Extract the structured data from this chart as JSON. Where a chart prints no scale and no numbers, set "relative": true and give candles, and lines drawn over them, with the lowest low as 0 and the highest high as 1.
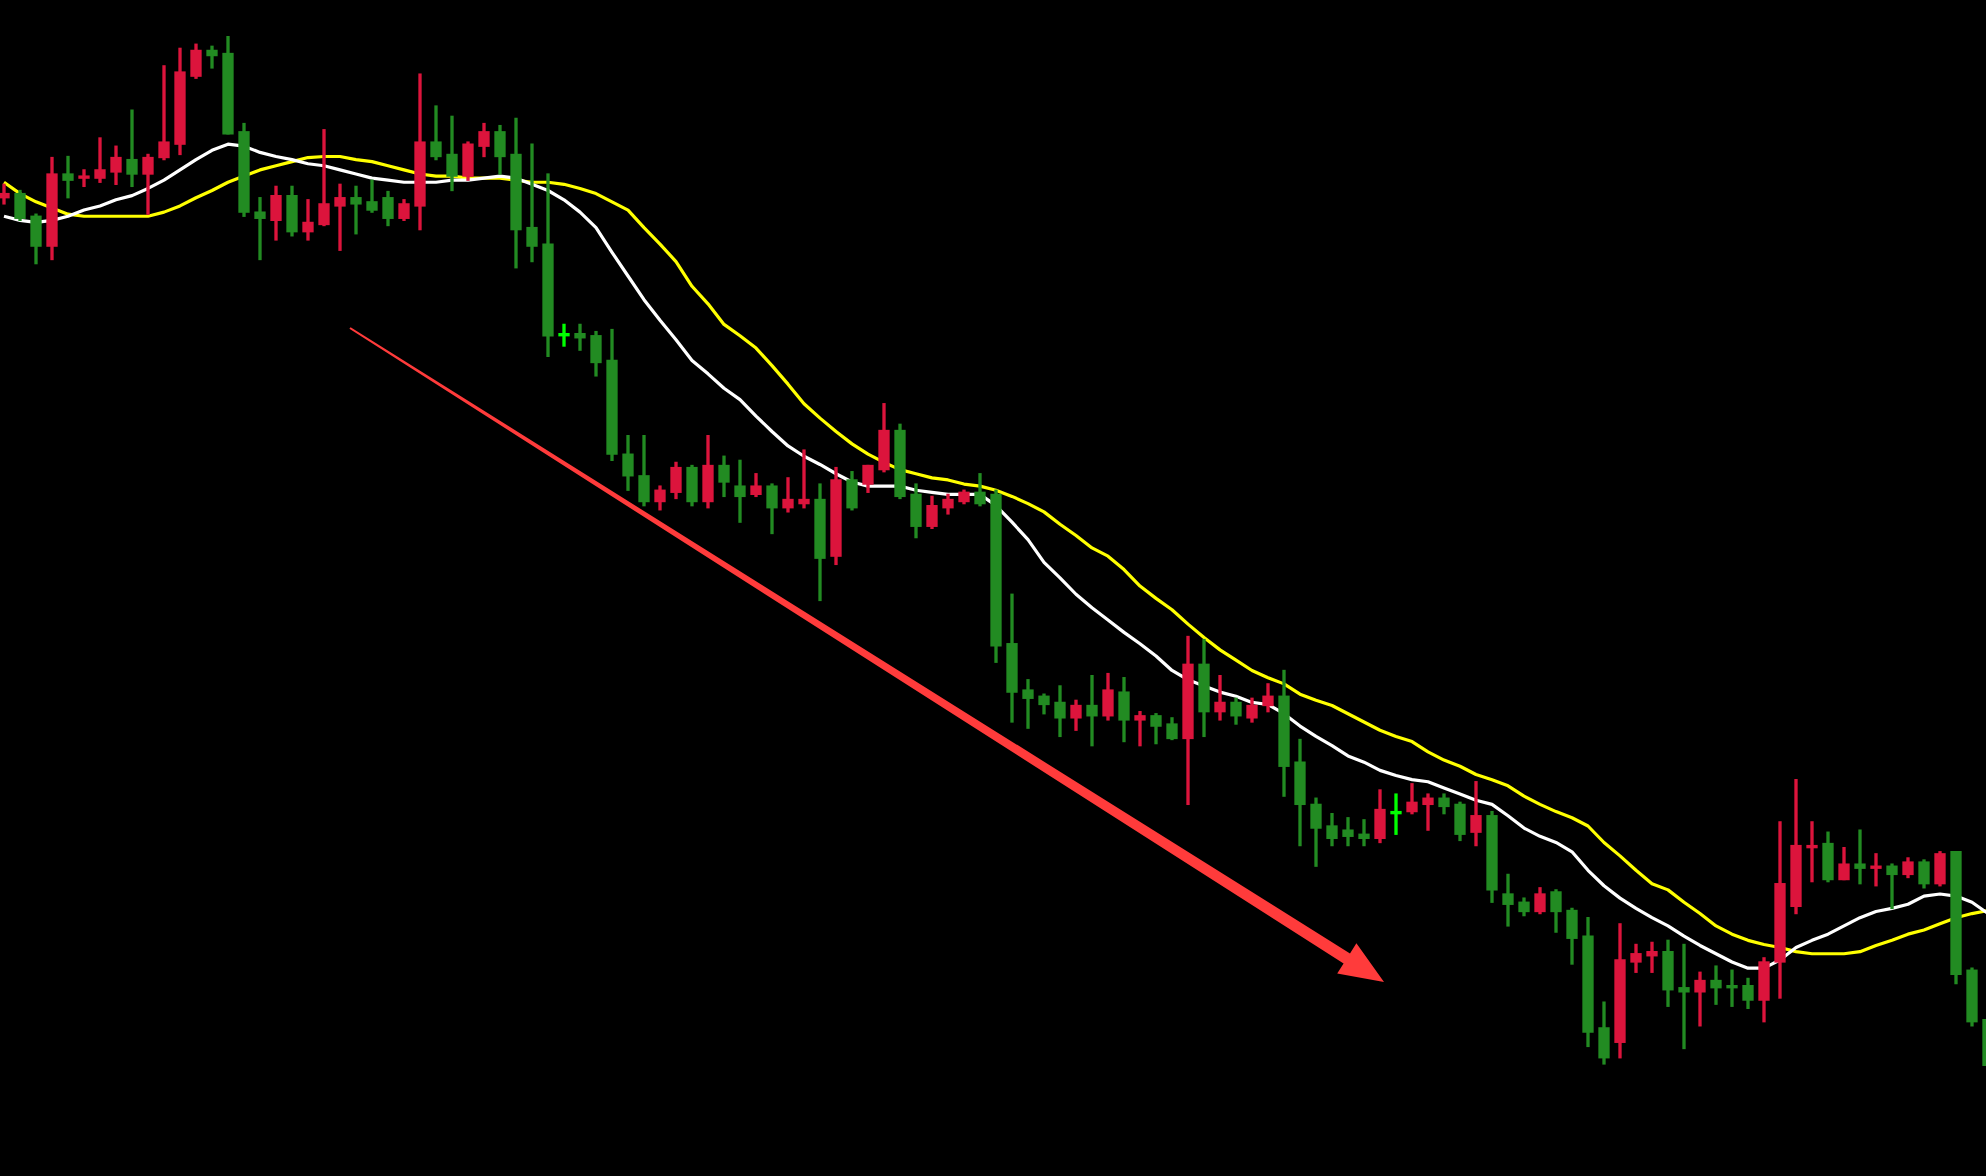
{
  "chart_data": {
    "type": "candlestick",
    "relative": true,
    "categories": [
      null,
      null,
      null,
      null,
      null,
      null,
      null,
      null,
      null,
      null,
      null,
      null,
      null,
      null,
      null,
      null,
      null,
      null,
      null,
      null,
      null,
      null,
      null,
      null,
      null,
      null,
      null,
      null,
      null,
      null,
      null,
      null,
      null,
      null,
      null,
      null,
      null,
      null,
      null,
      null,
      null,
      null,
      null,
      null,
      null,
      null,
      null,
      null,
      null,
      null,
      null,
      null,
      null,
      null,
      null,
      null,
      null,
      null,
      null,
      null,
      null,
      null,
      null,
      null,
      null,
      null,
      null,
      null,
      null,
      null,
      null,
      null,
      null,
      null,
      null,
      null,
      null,
      null,
      null,
      null,
      null,
      null,
      null,
      null,
      null,
      null,
      null,
      null,
      null,
      null,
      null,
      null,
      null,
      null,
      null,
      null,
      null,
      null,
      null,
      null,
      null,
      null,
      null,
      null,
      null,
      null,
      null,
      null,
      null,
      null,
      null,
      null,
      null,
      null,
      null,
      null,
      null,
      null,
      null,
      null,
      null,
      null,
      null,
      null,
      null
    ],
    "ohlc": [
      [
        0.843,
        0.856,
        0.837,
        0.847
      ],
      [
        0.847,
        0.85,
        0.821,
        0.823
      ],
      [
        0.825,
        0.827,
        0.779,
        0.796
      ],
      [
        0.796,
        0.882,
        0.783,
        0.866
      ],
      [
        0.866,
        0.883,
        0.843,
        0.86
      ],
      [
        0.862,
        0.87,
        0.854,
        0.864
      ],
      [
        0.862,
        0.901,
        0.858,
        0.87
      ],
      [
        0.868,
        0.893,
        0.856,
        0.882
      ],
      [
        0.88,
        0.928,
        0.854,
        0.866
      ],
      [
        0.866,
        0.885,
        0.827,
        0.882
      ],
      [
        0.882,
        0.971,
        0.88,
        0.897
      ],
      [
        0.895,
        0.988,
        0.885,
        0.965
      ],
      [
        0.961,
        0.992,
        0.959,
        0.986
      ],
      [
        0.986,
        0.99,
        0.969,
        0.981
      ],
      [
        0.983,
        1,
        0.905,
        0.905
      ],
      [
        0.907,
        0.915,
        0.825,
        0.829
      ],
      [
        0.829,
        0.843,
        0.783,
        0.823
      ],
      [
        0.821,
        0.854,
        0.802,
        0.845
      ],
      [
        0.845,
        0.854,
        0.806,
        0.81
      ],
      [
        0.81,
        0.841,
        0.802,
        0.819
      ],
      [
        0.817,
        0.909,
        0.816,
        0.837
      ],
      [
        0.835,
        0.856,
        0.792,
        0.843
      ],
      [
        0.843,
        0.854,
        0.808,
        0.837
      ],
      [
        0.839,
        0.86,
        0.829,
        0.831
      ],
      [
        0.843,
        0.849,
        0.816,
        0.823
      ],
      [
        0.823,
        0.841,
        0.821,
        0.837
      ],
      [
        0.835,
        0.963,
        0.812,
        0.897
      ],
      [
        0.897,
        0.932,
        0.88,
        0.883
      ],
      [
        0.885,
        0.922,
        0.85,
        0.864
      ],
      [
        0.864,
        0.897,
        0.86,
        0.895
      ],
      [
        0.893,
        0.915,
        0.883,
        0.907
      ],
      [
        0.907,
        0.913,
        0.866,
        0.883
      ],
      [
        0.885,
        0.92,
        0.775,
        0.812
      ],
      [
        0.814,
        0.895,
        0.781,
        0.796
      ],
      [
        0.798,
        0.866,
        0.689,
        0.709
      ],
      [
        0.711,
        0.72,
        0.699,
        0.709
      ],
      [
        0.711,
        0.72,
        0.695,
        0.707
      ],
      [
        0.709,
        0.713,
        0.67,
        0.683
      ],
      [
        0.685,
        0.715,
        0.588,
        0.594
      ],
      [
        0.594,
        0.612,
        0.559,
        0.573
      ],
      [
        0.573,
        0.612,
        0.544,
        0.548
      ],
      [
        0.548,
        0.563,
        0.54,
        0.559
      ],
      [
        0.557,
        0.586,
        0.551,
        0.581
      ],
      [
        0.581,
        0.583,
        0.544,
        0.548
      ],
      [
        0.548,
        0.612,
        0.542,
        0.583
      ],
      [
        0.583,
        0.592,
        0.553,
        0.567
      ],
      [
        0.563,
        0.588,
        0.528,
        0.553
      ],
      [
        0.555,
        0.575,
        0.553,
        0.563
      ],
      [
        0.563,
        0.565,
        0.517,
        0.542
      ],
      [
        0.542,
        0.571,
        0.538,
        0.55
      ],
      [
        0.546,
        0.598,
        0.542,
        0.55
      ],
      [
        0.55,
        0.565,
        0.452,
        0.493
      ],
      [
        0.495,
        0.581,
        0.487,
        0.569
      ],
      [
        0.569,
        0.577,
        0.54,
        0.542
      ],
      [
        0.565,
        0.583,
        0.557,
        0.583
      ],
      [
        0.579,
        0.643,
        0.577,
        0.617
      ],
      [
        0.617,
        0.623,
        0.551,
        0.553
      ],
      [
        0.555,
        0.565,
        0.513,
        0.524
      ],
      [
        0.524,
        0.553,
        0.522,
        0.544
      ],
      [
        0.542,
        0.555,
        0.536,
        0.55
      ],
      [
        0.548,
        0.559,
        0.546,
        0.557
      ],
      [
        0.557,
        0.575,
        0.544,
        0.546
      ],
      [
        0.555,
        0.559,
        0.392,
        0.408
      ],
      [
        0.41,
        0.458,
        0.334,
        0.363
      ],
      [
        0.365,
        0.375,
        0.328,
        0.357
      ],
      [
        0.359,
        0.361,
        0.342,
        0.351
      ],
      [
        0.353,
        0.369,
        0.32,
        0.338
      ],
      [
        0.338,
        0.355,
        0.326,
        0.35
      ],
      [
        0.35,
        0.379,
        0.311,
        0.34
      ],
      [
        0.34,
        0.381,
        0.336,
        0.365
      ],
      [
        0.363,
        0.377,
        0.315,
        0.336
      ],
      [
        0.336,
        0.344,
        0.311,
        0.34
      ],
      [
        0.34,
        0.342,
        0.313,
        0.33
      ],
      [
        0.332,
        0.338,
        0.317,
        0.318
      ],
      [
        0.318,
        0.417,
        0.254,
        0.39
      ],
      [
        0.39,
        0.414,
        0.32,
        0.344
      ],
      [
        0.344,
        0.379,
        0.336,
        0.353
      ],
      [
        0.353,
        0.357,
        0.332,
        0.34
      ],
      [
        0.338,
        0.357,
        0.334,
        0.35
      ],
      [
        0.35,
        0.371,
        0.344,
        0.359
      ],
      [
        0.359,
        0.384,
        0.262,
        0.291
      ],
      [
        0.295,
        0.317,
        0.214,
        0.254
      ],
      [
        0.254,
        0.26,
        0.194,
        0.231
      ],
      [
        0.233,
        0.245,
        0.214,
        0.221
      ],
      [
        0.229,
        0.241,
        0.214,
        0.223
      ],
      [
        0.225,
        0.239,
        0.214,
        0.221
      ],
      [
        0.221,
        0.268,
        0.217,
        0.249
      ],
      [
        0.247,
        0.264,
        0.225,
        0.245
      ],
      [
        0.247,
        0.274,
        0.245,
        0.256
      ],
      [
        0.254,
        0.264,
        0.229,
        0.26
      ],
      [
        0.26,
        0.264,
        0.245,
        0.252
      ],
      [
        0.254,
        0.256,
        0.219,
        0.225
      ],
      [
        0.227,
        0.276,
        0.214,
        0.243
      ],
      [
        0.243,
        0.247,
        0.159,
        0.171
      ],
      [
        0.167,
        0.186,
        0.136,
        0.157
      ],
      [
        0.159,
        0.163,
        0.146,
        0.15
      ],
      [
        0.15,
        0.173,
        0.148,
        0.167
      ],
      [
        0.169,
        0.171,
        0.13,
        0.15
      ],
      [
        0.151,
        0.153,
        0.099,
        0.124
      ],
      [
        0.126,
        0.144,
        0.019,
        0.033
      ],
      [
        0.037,
        0.062,
        0.002,
        0.008
      ],
      [
        0.023,
        0.138,
        0.008,
        0.103
      ],
      [
        0.101,
        0.118,
        0.091,
        0.109
      ],
      [
        0.107,
        0.12,
        0.091,
        0.111
      ],
      [
        0.111,
        0.122,
        0.058,
        0.074
      ],
      [
        0.076,
        0.118,
        0.017,
        0.072
      ],
      [
        0.072,
        0.091,
        0.039,
        0.083
      ],
      [
        0.083,
        0.097,
        0.06,
        0.076
      ],
      [
        0.078,
        0.093,
        0.058,
        0.076
      ],
      [
        0.078,
        0.085,
        0.056,
        0.064
      ],
      [
        0.064,
        0.105,
        0.043,
        0.101
      ],
      [
        0.101,
        0.237,
        0.066,
        0.177
      ],
      [
        0.155,
        0.278,
        0.148,
        0.214
      ],
      [
        0.212,
        0.237,
        0.179,
        0.214
      ],
      [
        0.216,
        0.227,
        0.179,
        0.181
      ],
      [
        0.181,
        0.212,
        0.181,
        0.196
      ],
      [
        0.196,
        0.229,
        0.177,
        0.192
      ],
      [
        0.192,
        0.206,
        0.175,
        0.194
      ],
      [
        0.194,
        0.196,
        0.153,
        0.186
      ],
      [
        0.186,
        0.202,
        0.183,
        0.198
      ],
      [
        0.198,
        0.2,
        0.173,
        0.177
      ],
      [
        0.177,
        0.208,
        0.175,
        0.206
      ],
      [
        0.208,
        0.208,
        0.08,
        0.089
      ],
      [
        0.093,
        0.095,
        0.039,
        0.043
      ],
      [
        0.045,
        0.049,
        0,
        0
      ]
    ],
    "colors": [
      "#dc143c",
      "#228b22",
      "#228b22",
      "#dc143c",
      "#228b22",
      "#dc143c",
      "#dc143c",
      "#dc143c",
      "#228b22",
      "#dc143c",
      "#dc143c",
      "#dc143c",
      "#dc143c",
      "#228b22",
      "#228b22",
      "#228b22",
      "#228b22",
      "#dc143c",
      "#228b22",
      "#dc143c",
      "#dc143c",
      "#dc143c",
      "#228b22",
      "#228b22",
      "#228b22",
      "#dc143c",
      "#dc143c",
      "#228b22",
      "#228b22",
      "#dc143c",
      "#dc143c",
      "#228b22",
      "#228b22",
      "#228b22",
      "#228b22",
      "#00ff00",
      "#228b22",
      "#228b22",
      "#228b22",
      "#228b22",
      "#228b22",
      "#dc143c",
      "#dc143c",
      "#228b22",
      "#dc143c",
      "#228b22",
      "#228b22",
      "#dc143c",
      "#228b22",
      "#dc143c",
      "#dc143c",
      "#228b22",
      "#dc143c",
      "#228b22",
      "#dc143c",
      "#dc143c",
      "#228b22",
      "#228b22",
      "#dc143c",
      "#dc143c",
      "#dc143c",
      "#228b22",
      "#228b22",
      "#228b22",
      "#228b22",
      "#228b22",
      "#228b22",
      "#dc143c",
      "#228b22",
      "#dc143c",
      "#228b22",
      "#dc143c",
      "#228b22",
      "#228b22",
      "#dc143c",
      "#228b22",
      "#dc143c",
      "#228b22",
      "#dc143c",
      "#dc143c",
      "#228b22",
      "#228b22",
      "#228b22",
      "#228b22",
      "#228b22",
      "#228b22",
      "#dc143c",
      "#00ff00",
      "#dc143c",
      "#dc143c",
      "#228b22",
      "#228b22",
      "#dc143c",
      "#228b22",
      "#228b22",
      "#228b22",
      "#dc143c",
      "#228b22",
      "#228b22",
      "#228b22",
      "#228b22",
      "#dc143c",
      "#dc143c",
      "#dc143c",
      "#228b22",
      "#228b22",
      "#dc143c",
      "#228b22",
      "#228b22",
      "#228b22",
      "#dc143c",
      "#dc143c",
      "#dc143c",
      "#dc143c",
      "#228b22",
      "#dc143c",
      "#228b22",
      "#dc143c",
      "#228b22",
      "#dc143c",
      "#228b22",
      "#dc143c",
      "#228b22",
      "#228b22",
      "#228b22"
    ],
    "series": [
      {
        "type": "line",
        "color": "#ffffff",
        "values": [
          0.825,
          0.821,
          0.819,
          0.821,
          0.825,
          0.831,
          0.835,
          0.841,
          0.845,
          0.852,
          0.86,
          0.87,
          0.88,
          0.889,
          0.895,
          0.893,
          0.887,
          0.883,
          0.88,
          0.876,
          0.874,
          0.87,
          0.866,
          0.862,
          0.86,
          0.858,
          0.858,
          0.858,
          0.86,
          0.86,
          0.862,
          0.864,
          0.862,
          0.856,
          0.85,
          0.841,
          0.829,
          0.814,
          0.79,
          0.767,
          0.744,
          0.724,
          0.705,
          0.685,
          0.672,
          0.658,
          0.647,
          0.631,
          0.616,
          0.602,
          0.592,
          0.584,
          0.575,
          0.567,
          0.563,
          0.563,
          0.563,
          0.559,
          0.557,
          0.555,
          0.555,
          0.555,
          0.544,
          0.528,
          0.511,
          0.489,
          0.474,
          0.458,
          0.445,
          0.433,
          0.421,
          0.41,
          0.398,
          0.384,
          0.375,
          0.369,
          0.363,
          0.359,
          0.353,
          0.351,
          0.342,
          0.33,
          0.32,
          0.311,
          0.301,
          0.295,
          0.287,
          0.282,
          0.278,
          0.276,
          0.27,
          0.264,
          0.258,
          0.254,
          0.243,
          0.231,
          0.223,
          0.217,
          0.208,
          0.19,
          0.175,
          0.163,
          0.153,
          0.144,
          0.136,
          0.126,
          0.117,
          0.109,
          0.101,
          0.095,
          0.095,
          0.103,
          0.115,
          0.122,
          0.128,
          0.136,
          0.144,
          0.15,
          0.153,
          0.157,
          0.165,
          0.167,
          0.165,
          0.159,
          0.148
        ]
      },
      {
        "type": "line",
        "color": "#ffff00",
        "values": [
          0.858,
          0.847,
          0.839,
          0.833,
          0.827,
          0.825,
          0.825,
          0.825,
          0.825,
          0.825,
          0.829,
          0.835,
          0.843,
          0.85,
          0.858,
          0.864,
          0.87,
          0.874,
          0.878,
          0.882,
          0.883,
          0.883,
          0.88,
          0.878,
          0.874,
          0.87,
          0.866,
          0.864,
          0.864,
          0.862,
          0.862,
          0.862,
          0.86,
          0.858,
          0.858,
          0.856,
          0.852,
          0.847,
          0.839,
          0.831,
          0.814,
          0.798,
          0.781,
          0.757,
          0.74,
          0.72,
          0.709,
          0.697,
          0.68,
          0.662,
          0.643,
          0.629,
          0.616,
          0.604,
          0.594,
          0.586,
          0.579,
          0.575,
          0.571,
          0.569,
          0.565,
          0.563,
          0.559,
          0.553,
          0.546,
          0.538,
          0.526,
          0.515,
          0.503,
          0.495,
          0.482,
          0.466,
          0.454,
          0.443,
          0.429,
          0.416,
          0.404,
          0.394,
          0.384,
          0.377,
          0.371,
          0.361,
          0.355,
          0.35,
          0.342,
          0.334,
          0.326,
          0.32,
          0.315,
          0.305,
          0.297,
          0.291,
          0.283,
          0.278,
          0.272,
          0.262,
          0.254,
          0.247,
          0.241,
          0.233,
          0.217,
          0.204,
          0.19,
          0.177,
          0.171,
          0.159,
          0.148,
          0.136,
          0.128,
          0.122,
          0.118,
          0.115,
          0.111,
          0.109,
          0.109,
          0.109,
          0.111,
          0.117,
          0.122,
          0.128,
          0.132,
          0.138,
          0.144,
          0.148,
          0.151
        ]
      }
    ]
  }
}
